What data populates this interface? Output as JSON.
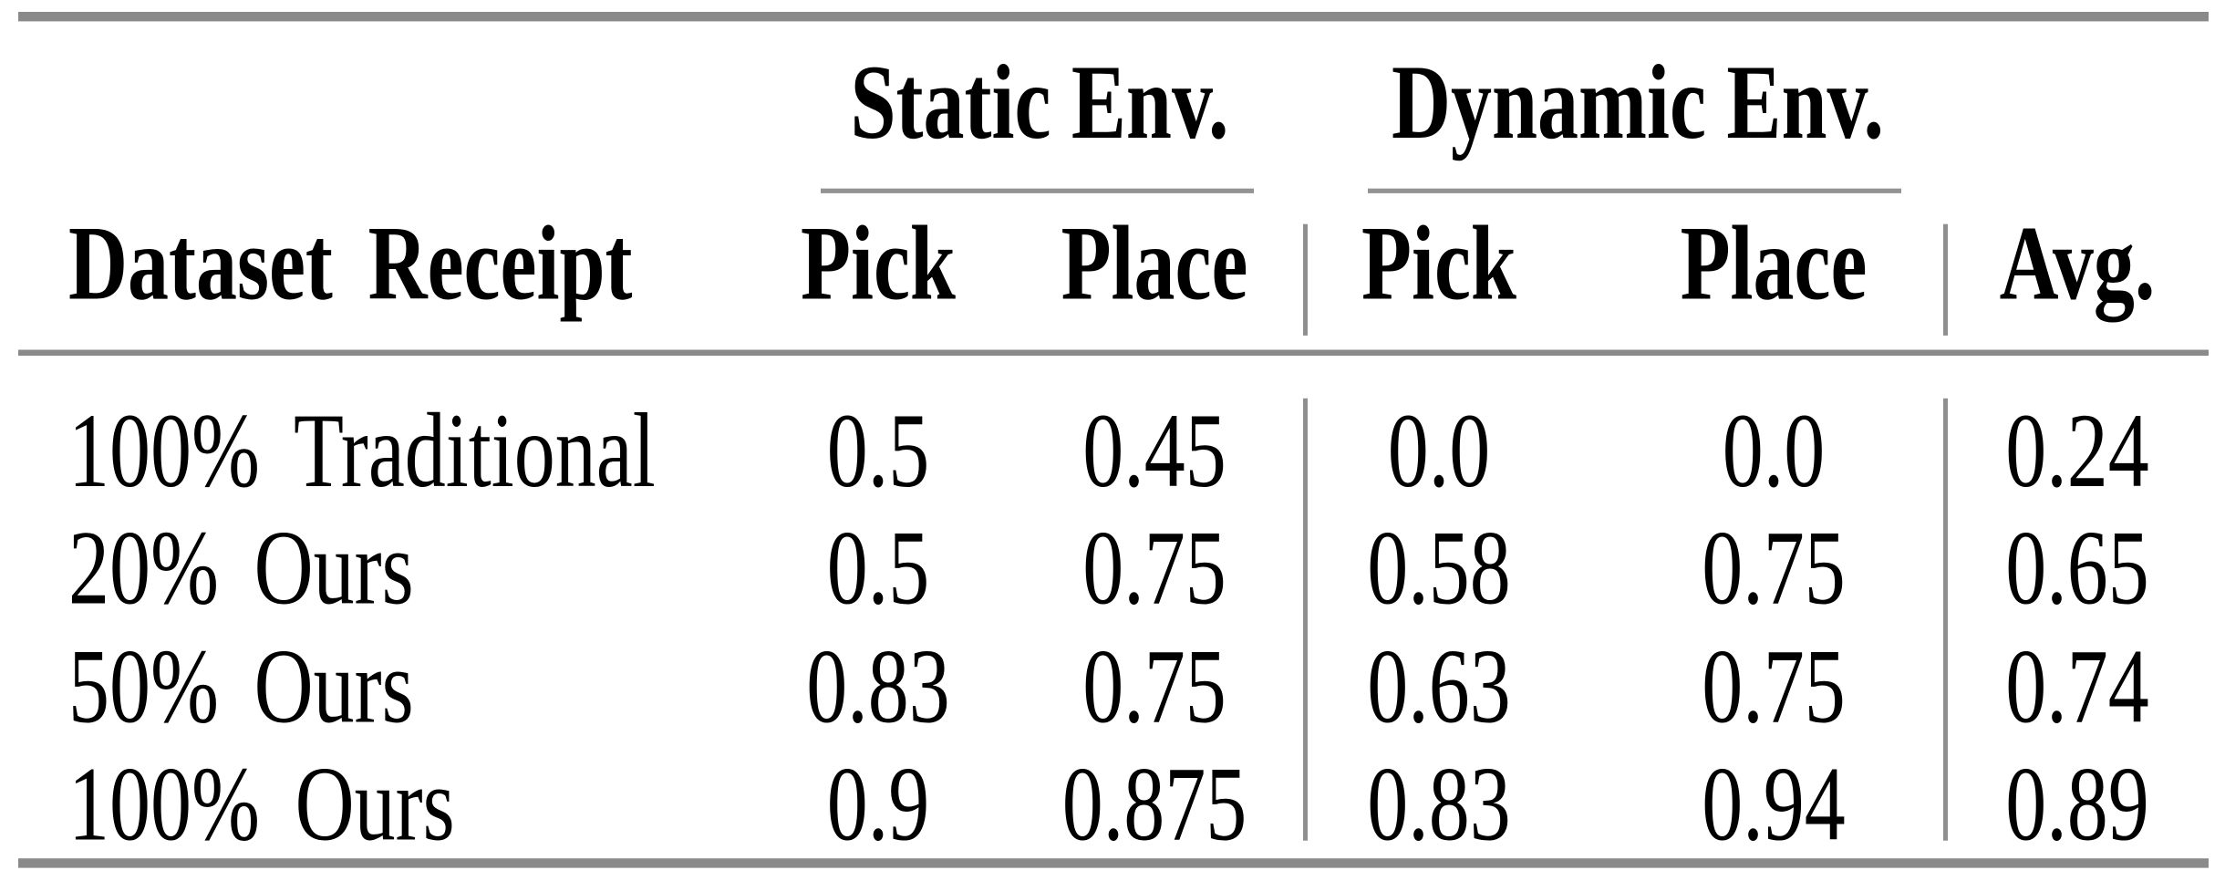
{
  "table": {
    "groups": [
      {
        "label": "Static Env."
      },
      {
        "label": "Dynamic Env."
      }
    ],
    "headers": {
      "dataset": "Dataset Receipt",
      "static_pick": "Pick",
      "static_place": "Place",
      "dynamic_pick": "Pick",
      "dynamic_place": "Place",
      "avg": "Avg."
    },
    "rows": [
      {
        "label": "100% Traditional",
        "static_pick": "0.5",
        "static_place": "0.45",
        "dynamic_pick": "0.0",
        "dynamic_place": "0.0",
        "avg": "0.24"
      },
      {
        "label": "20% Ours",
        "static_pick": "0.5",
        "static_place": "0.75",
        "dynamic_pick": "0.58",
        "dynamic_place": "0.75",
        "avg": "0.65"
      },
      {
        "label": "50% Ours",
        "static_pick": "0.83",
        "static_place": "0.75",
        "dynamic_pick": "0.63",
        "dynamic_place": "0.75",
        "avg": "0.74"
      },
      {
        "label": "100% Ours",
        "static_pick": "0.9",
        "static_place": "0.875",
        "dynamic_pick": "0.83",
        "dynamic_place": "0.94",
        "avg": "0.89"
      }
    ]
  },
  "colors": {
    "rule_gray": "#8a8a8a",
    "text": "#000000",
    "background": "#ffffff"
  }
}
